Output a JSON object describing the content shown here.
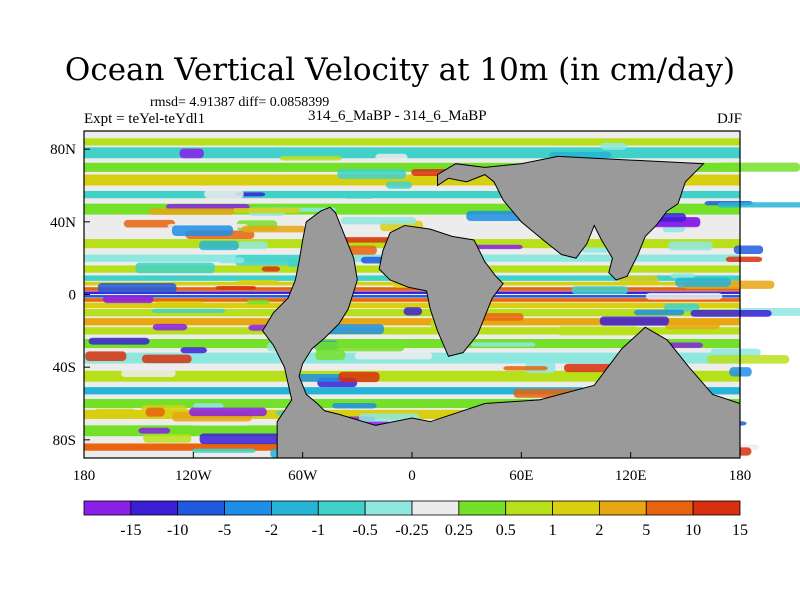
{
  "chart_data": {
    "type": "heatmap",
    "title": "Ocean Vertical Velocity at 10m (in cm/day)",
    "stats": "rmsd= 4.91387 diff= 0.0858399",
    "experiment": "Expt = teYel-teYdl1",
    "subtitle": "314_6_MaBP - 314_6_MaBP",
    "season": "DJF",
    "x_axis": {
      "range": [
        -180,
        180
      ],
      "ticks": [
        -180,
        -120,
        -60,
        0,
        60,
        120,
        180
      ],
      "tick_labels": [
        "180",
        "120W",
        "60W",
        "0",
        "60E",
        "120E",
        "180"
      ]
    },
    "y_axis": {
      "range": [
        -90,
        90
      ],
      "ticks": [
        80,
        40,
        0,
        -40,
        -80
      ],
      "tick_labels": [
        "80N",
        "40N",
        "0",
        "40S",
        "80S"
      ]
    },
    "colorbar": {
      "levels": [
        "-15",
        "-10",
        "-5",
        "-2",
        "-1",
        "-0.5",
        "-0.25",
        "0.25",
        "0.5",
        "1",
        "2",
        "5",
        "10",
        "15"
      ],
      "colors": [
        "#8a1fe8",
        "#3b1fd6",
        "#1f5ae0",
        "#1f8ee8",
        "#25b4d6",
        "#40d2c8",
        "#8fe8e0",
        "#ececec",
        "#74e02a",
        "#b8e01a",
        "#d8cf10",
        "#e8a612",
        "#e8640e",
        "#d8300e"
      ],
      "land_color": "#9a9a9a"
    }
  }
}
